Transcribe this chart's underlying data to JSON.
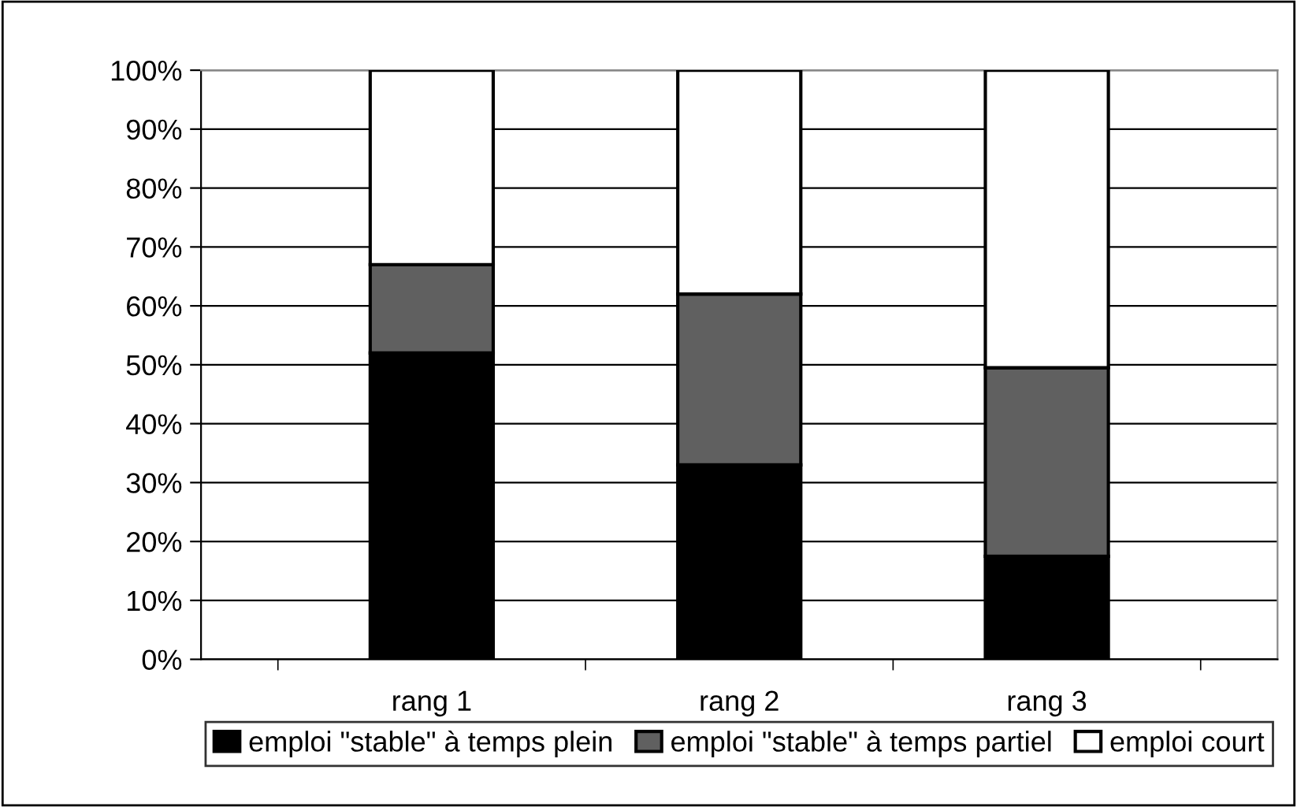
{
  "chart_data": {
    "type": "bar",
    "stacked": true,
    "categories": [
      "rang 1",
      "rang 2",
      "rang 3"
    ],
    "series": [
      {
        "name": "emploi \"stable\" à temps plein",
        "color": "#000000",
        "values": [
          52,
          33,
          17.5
        ]
      },
      {
        "name": "emploi \"stable\" à temps partiel",
        "color": "#606060",
        "values": [
          15,
          29,
          32
        ]
      },
      {
        "name": "emploi court",
        "color": "#ffffff",
        "values": [
          33,
          38,
          50.5
        ]
      }
    ],
    "ylim": [
      0,
      100
    ],
    "yticks": [
      {
        "value": 0,
        "label": "0%"
      },
      {
        "value": 10,
        "label": "10%"
      },
      {
        "value": 20,
        "label": "20%"
      },
      {
        "value": 30,
        "label": "30%"
      },
      {
        "value": 40,
        "label": "40%"
      },
      {
        "value": 50,
        "label": "50%"
      },
      {
        "value": 60,
        "label": "60%"
      },
      {
        "value": 70,
        "label": "70%"
      },
      {
        "value": 80,
        "label": "80%"
      },
      {
        "value": 90,
        "label": "90%"
      },
      {
        "value": 100,
        "label": "100%"
      }
    ],
    "grid": "y",
    "legend": "bottom"
  }
}
